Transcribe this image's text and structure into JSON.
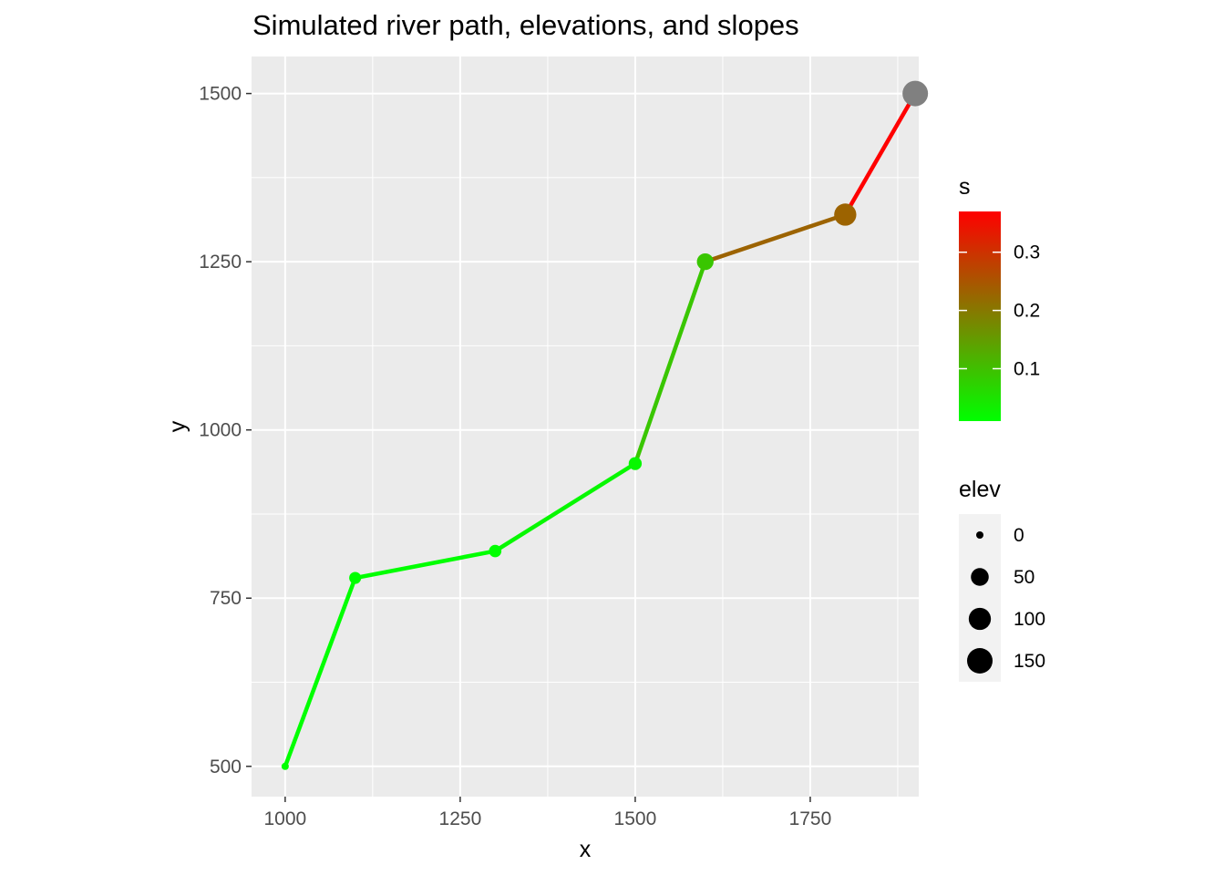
{
  "chart_data": {
    "type": "line",
    "title": "Simulated river path, elevations, and slopes",
    "xlabel": "x",
    "ylabel": "y",
    "xlim": [
      952,
      1905
    ],
    "ylim": [
      455,
      1555
    ],
    "x_ticks": [
      1000,
      1250,
      1500,
      1750
    ],
    "y_ticks": [
      500,
      750,
      1000,
      1250,
      1500
    ],
    "grid": true,
    "points": [
      {
        "x": 1000,
        "y": 500,
        "elev": 0,
        "s": 0
      },
      {
        "x": 1100,
        "y": 780,
        "elev": 10,
        "s": 0.01
      },
      {
        "x": 1300,
        "y": 820,
        "elev": 12,
        "s": 0.01
      },
      {
        "x": 1500,
        "y": 950,
        "elev": 15,
        "s": 0.02
      },
      {
        "x": 1600,
        "y": 1250,
        "elev": 40,
        "s": 0.09
      },
      {
        "x": 1800,
        "y": 1320,
        "elev": 100,
        "s": 0.23
      },
      {
        "x": 1900,
        "y": 1500,
        "elev": 150,
        "s": 0.37
      }
    ],
    "segments_s": [
      0.01,
      0.01,
      0.02,
      0.09,
      0.23,
      0.37
    ],
    "last_point_color": "#808080",
    "legend_color": {
      "title": "s",
      "low_color": "#00ff00",
      "high_color": "#ff0000",
      "range": [
        0.01,
        0.37
      ],
      "ticks": [
        0.1,
        0.2,
        0.3
      ],
      "tick_labels": [
        "0.1",
        "0.2",
        "0.3"
      ],
      "placement": "right"
    },
    "legend_size": {
      "title": "elev",
      "values": [
        0,
        50,
        100,
        150
      ],
      "labels": [
        "0",
        "50",
        "100",
        "150"
      ],
      "placement": "right"
    },
    "panel_background": "#ebebeb",
    "grid_color": "#ffffff"
  }
}
